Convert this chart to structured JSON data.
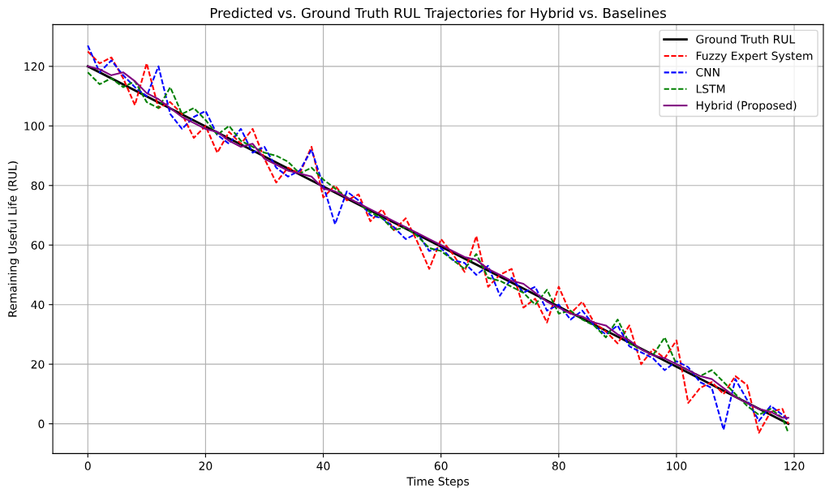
{
  "chart_data": {
    "type": "line",
    "title": "Predicted vs. Ground Truth RUL Trajectories for Hybrid vs. Baselines",
    "xlabel": "Time Steps",
    "ylabel": "Remaining Useful Life (RUL)",
    "x": [
      0,
      2,
      4,
      6,
      8,
      10,
      12,
      14,
      16,
      18,
      20,
      22,
      24,
      26,
      28,
      30,
      32,
      34,
      36,
      38,
      40,
      42,
      44,
      46,
      48,
      50,
      52,
      54,
      56,
      58,
      60,
      62,
      64,
      66,
      68,
      70,
      72,
      74,
      76,
      78,
      80,
      82,
      84,
      86,
      88,
      90,
      92,
      94,
      96,
      98,
      100,
      102,
      104,
      106,
      108,
      110,
      112,
      114,
      116,
      118,
      119
    ],
    "series": [
      {
        "name": "Ground Truth RUL",
        "color": "#000000",
        "line_style": "solid",
        "x": [
          0,
          119
        ],
        "values": [
          120,
          0
        ]
      },
      {
        "name": "Fuzzy Expert System",
        "color": "#ff0000",
        "line_style": "dashed",
        "values": [
          125,
          121,
          123,
          116,
          107,
          121,
          106,
          108,
          104,
          96,
          100,
          91,
          98,
          94,
          99,
          89,
          81,
          86,
          84,
          93,
          76,
          80,
          75,
          77,
          68,
          72,
          65,
          69,
          61,
          52,
          62,
          57,
          51,
          63,
          46,
          50,
          52,
          39,
          42,
          34,
          46,
          37,
          41,
          34,
          31,
          27,
          33,
          20,
          25,
          22,
          28,
          7,
          12,
          14,
          10,
          16,
          13,
          -3,
          4,
          5,
          0
        ]
      },
      {
        "name": "CNN",
        "color": "#0000ff",
        "line_style": "dashed",
        "values": [
          127,
          118,
          122,
          117,
          113,
          110,
          120,
          104,
          99,
          103,
          105,
          97,
          94,
          99,
          91,
          93,
          86,
          83,
          85,
          92,
          80,
          67,
          78,
          75,
          70,
          69,
          66,
          62,
          64,
          58,
          59,
          55,
          54,
          50,
          53,
          43,
          49,
          44,
          46,
          38,
          40,
          35,
          38,
          33,
          30,
          33,
          26,
          24,
          22,
          18,
          21,
          19,
          14,
          12,
          -2,
          15,
          8,
          1,
          6,
          3,
          1
        ]
      },
      {
        "name": "LSTM",
        "color": "#008000",
        "line_style": "dashed",
        "values": [
          118,
          114,
          116,
          113,
          115,
          108,
          106,
          113,
          104,
          106,
          102,
          97,
          100,
          95,
          93,
          91,
          90,
          88,
          84,
          86,
          82,
          79,
          76,
          74,
          71,
          69,
          65,
          66,
          63,
          59,
          58,
          55,
          52,
          57,
          49,
          48,
          46,
          44,
          40,
          45,
          37,
          38,
          35,
          33,
          29,
          35,
          27,
          25,
          23,
          29,
          20,
          18,
          16,
          18,
          14,
          10,
          6,
          3,
          5,
          2,
          -3
        ]
      },
      {
        "name": "Hybrid (Proposed)",
        "color": "#800080",
        "line_style": "solid",
        "values": [
          120,
          119,
          117,
          118,
          115,
          111,
          109,
          106,
          103,
          101,
          99,
          98,
          95,
          93,
          94,
          89,
          87,
          85,
          84,
          83,
          79,
          78,
          76,
          74,
          72,
          70,
          68,
          66,
          64,
          62,
          60,
          58,
          56,
          55,
          52,
          50,
          48,
          47,
          44,
          41,
          39,
          37,
          36,
          34,
          33,
          30,
          28,
          25,
          23,
          22,
          20,
          18,
          16,
          15,
          12,
          9,
          7,
          5,
          4,
          2,
          2
        ]
      }
    ],
    "xlim": [
      -5.95,
      124.95
    ],
    "ylim": [
      -10,
      134
    ],
    "xticks": [
      0,
      20,
      40,
      60,
      80,
      100,
      120
    ],
    "yticks": [
      0,
      20,
      40,
      60,
      80,
      100,
      120
    ],
    "grid": true,
    "legend": "top right",
    "marker": "none"
  }
}
